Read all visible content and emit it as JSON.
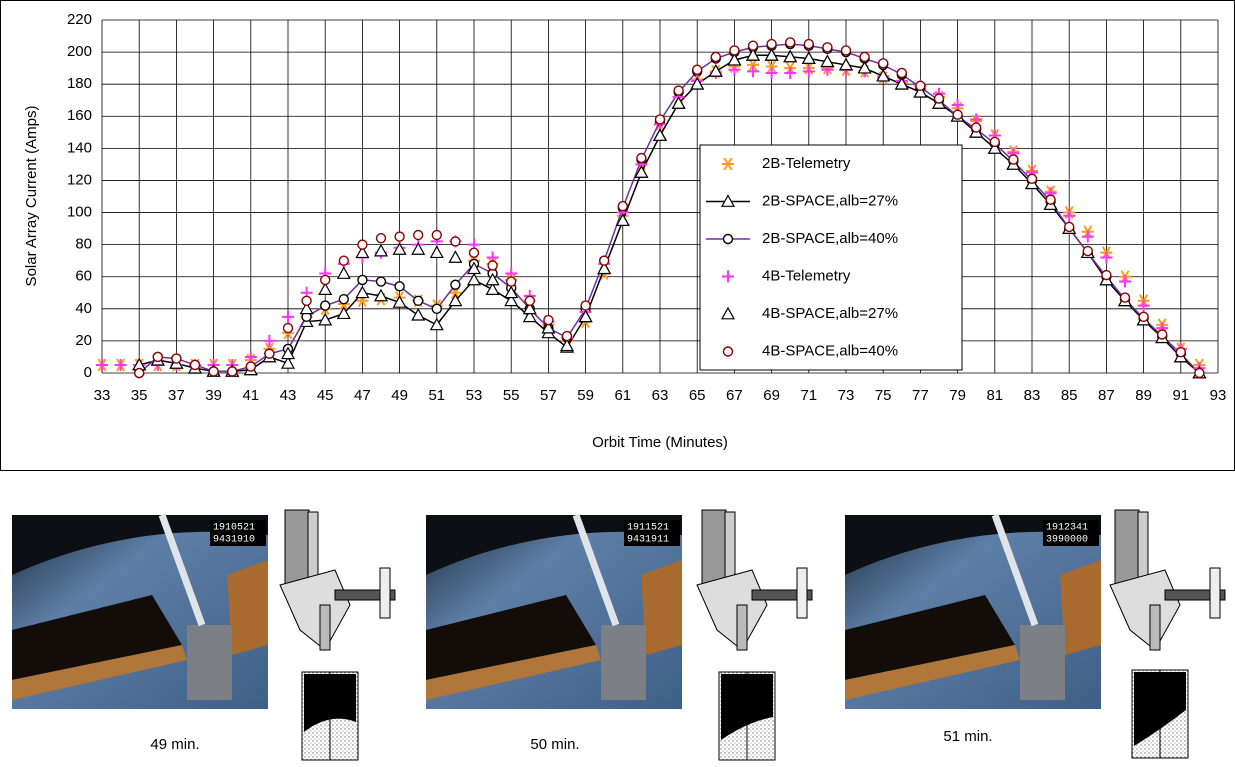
{
  "chart_data": {
    "type": "line",
    "x_label": "Orbit Time (Minutes)",
    "y_label": "Solar Array Current (Amps)",
    "xlim": [
      33,
      93
    ],
    "ylim": [
      0,
      220
    ],
    "xticks": [
      33,
      35,
      37,
      39,
      41,
      43,
      45,
      47,
      49,
      51,
      53,
      55,
      57,
      59,
      61,
      63,
      65,
      67,
      69,
      71,
      73,
      75,
      77,
      79,
      81,
      83,
      85,
      87,
      89,
      91,
      93
    ],
    "yticks": [
      0,
      20,
      40,
      60,
      80,
      100,
      120,
      140,
      160,
      180,
      200,
      220
    ],
    "grid": true,
    "x": [
      33,
      34,
      35,
      36,
      37,
      38,
      39,
      40,
      41,
      42,
      43,
      44,
      45,
      46,
      47,
      48,
      49,
      50,
      51,
      52,
      53,
      54,
      55,
      56,
      57,
      58,
      59,
      60,
      61,
      62,
      63,
      64,
      65,
      66,
      67,
      68,
      69,
      70,
      71,
      72,
      73,
      74,
      75,
      76,
      77,
      78,
      79,
      80,
      81,
      82,
      83,
      84,
      85,
      86,
      87,
      88,
      89,
      90,
      91,
      92
    ],
    "series": [
      {
        "name": "2B-Telemetry",
        "color": "#ff9a1f",
        "marker": "asterisk",
        "line": false,
        "values": [
          5,
          5,
          5,
          5,
          5,
          5,
          5,
          5,
          8,
          15,
          25,
          35,
          40,
          43,
          45,
          46,
          47,
          45,
          42,
          50,
          70,
          68,
          58,
          45,
          30,
          20,
          32,
          62,
          98,
          130,
          155,
          172,
          183,
          188,
          191,
          192,
          191,
          190,
          190,
          190,
          189,
          188,
          184,
          181,
          177,
          172,
          165,
          157,
          148,
          138,
          126,
          113,
          100,
          88,
          75,
          60,
          45,
          30,
          15,
          5
        ]
      },
      {
        "name": "2B-SPACE,alb=27%",
        "color": "#000000",
        "marker": "triangle",
        "line": true,
        "values": [
          null,
          null,
          5,
          8,
          6,
          3,
          1,
          1,
          2,
          10,
          6,
          32,
          33,
          37,
          50,
          48,
          44,
          36,
          30,
          45,
          58,
          52,
          45,
          35,
          25,
          16,
          35,
          65,
          95,
          125,
          148,
          168,
          180,
          188,
          195,
          198,
          198,
          197,
          196,
          194,
          192,
          190,
          185,
          180,
          175,
          168,
          160,
          150,
          140,
          130,
          118,
          105,
          90,
          75,
          58,
          45,
          33,
          22,
          10,
          0
        ]
      },
      {
        "name": "2B-SPACE,alb=40%",
        "color": "#7030a0",
        "marker": "circle",
        "line": true,
        "values": [
          null,
          null,
          0,
          10,
          9,
          5,
          1,
          1,
          4,
          12,
          15,
          35,
          42,
          46,
          58,
          57,
          54,
          45,
          40,
          55,
          68,
          62,
          53,
          40,
          28,
          22,
          40,
          70,
          103,
          133,
          157,
          175,
          188,
          196,
          200,
          203,
          204,
          205,
          204,
          202,
          200,
          196,
          192,
          186,
          178,
          170,
          160,
          152,
          143,
          132,
          120,
          107,
          90,
          75,
          60,
          46,
          34,
          23,
          12,
          0
        ]
      },
      {
        "name": "4B-Telemetry",
        "color": "#ff33ff",
        "marker": "plus",
        "line": false,
        "values": [
          5,
          5,
          5,
          5,
          5,
          5,
          5,
          5,
          10,
          20,
          35,
          50,
          62,
          68,
          72,
          75,
          78,
          80,
          82,
          82,
          80,
          72,
          62,
          48,
          32,
          22,
          38,
          68,
          100,
          130,
          155,
          172,
          182,
          187,
          189,
          188,
          187,
          187,
          188,
          189,
          189,
          188,
          185,
          182,
          179,
          174,
          167,
          158,
          148,
          137,
          125,
          112,
          98,
          85,
          72,
          57,
          42,
          28,
          15,
          3
        ]
      },
      {
        "name": "4B-SPACE,alb=27%",
        "color": "#000000",
        "marker": "triangle",
        "line": false,
        "values": [
          null,
          null,
          5,
          8,
          6,
          3,
          1,
          1,
          2,
          10,
          12,
          40,
          52,
          62,
          75,
          76,
          77,
          77,
          75,
          72,
          65,
          58,
          50,
          40,
          28,
          17,
          35,
          65,
          95,
          125,
          148,
          168,
          180,
          188,
          195,
          198,
          198,
          197,
          196,
          194,
          192,
          190,
          185,
          180,
          175,
          168,
          160,
          150,
          140,
          130,
          118,
          105,
          90,
          75,
          58,
          45,
          33,
          22,
          10,
          0
        ]
      },
      {
        "name": "4B-SPACE,alb=40%",
        "color": "#8b0000",
        "marker": "circle",
        "line": false,
        "values": [
          null,
          null,
          0,
          10,
          9,
          5,
          1,
          1,
          4,
          12,
          28,
          45,
          58,
          70,
          80,
          84,
          85,
          86,
          86,
          82,
          75,
          67,
          57,
          45,
          33,
          23,
          42,
          70,
          104,
          134,
          158,
          176,
          189,
          197,
          201,
          204,
          205,
          206,
          205,
          203,
          201,
          197,
          193,
          187,
          179,
          171,
          161,
          153,
          144,
          133,
          121,
          108,
          91,
          76,
          61,
          47,
          35,
          24,
          13,
          0
        ]
      }
    ]
  },
  "panels": [
    {
      "caption": "49 min.",
      "stamp": [
        "1910521",
        "9431910"
      ]
    },
    {
      "caption": "50 min.",
      "stamp": [
        "1911521",
        "9431911"
      ]
    },
    {
      "caption": "51 min.",
      "stamp": [
        "1912341",
        "3990000"
      ]
    }
  ]
}
